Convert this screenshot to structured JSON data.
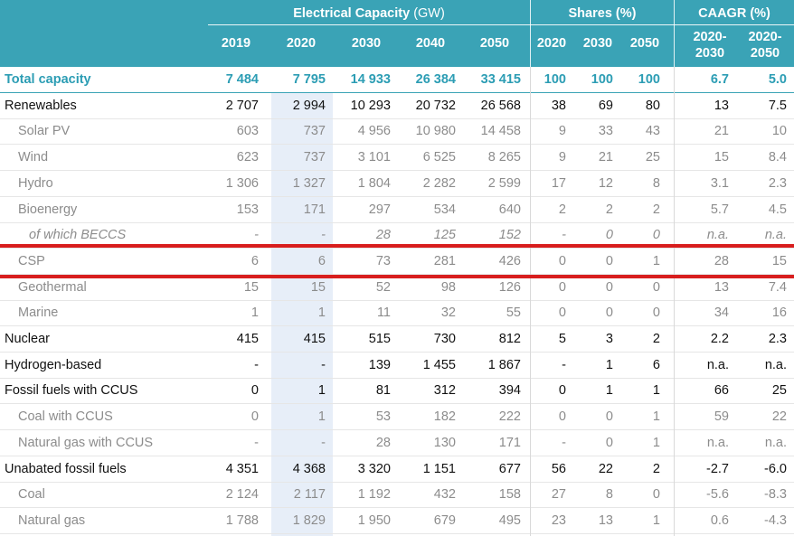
{
  "header": {
    "capacity_group": "Electrical Capacity",
    "capacity_unit": "(GW)",
    "shares_group": "Shares (%)",
    "caagr_group": "CAAGR (%)",
    "cap_years": [
      "2019",
      "2020",
      "2030",
      "2040",
      "2050"
    ],
    "share_years": [
      "2020",
      "2030",
      "2050"
    ],
    "caagr_periods": [
      [
        "2020-",
        "2030"
      ],
      [
        "2020-",
        "2050"
      ]
    ]
  },
  "rows": [
    {
      "label": "Total capacity",
      "style": "total",
      "cap": [
        "7 484",
        "7 795",
        "14 933",
        "26 384",
        "33 415"
      ],
      "shares": [
        "100",
        "100",
        "100"
      ],
      "caagr": [
        "6.7",
        "5.0"
      ]
    },
    {
      "label": "Renewables",
      "style": "main",
      "cap": [
        "2 707",
        "2 994",
        "10 293",
        "20 732",
        "26 568"
      ],
      "shares": [
        "38",
        "69",
        "80"
      ],
      "caagr": [
        "13",
        "7.5"
      ]
    },
    {
      "label": "Solar PV",
      "style": "sub",
      "cap": [
        "603",
        "737",
        "4 956",
        "10 980",
        "14 458"
      ],
      "shares": [
        "9",
        "33",
        "43"
      ],
      "caagr": [
        "21",
        "10"
      ]
    },
    {
      "label": "Wind",
      "style": "sub",
      "cap": [
        "623",
        "737",
        "3 101",
        "6 525",
        "8 265"
      ],
      "shares": [
        "9",
        "21",
        "25"
      ],
      "caagr": [
        "15",
        "8.4"
      ]
    },
    {
      "label": "Hydro",
      "style": "sub",
      "cap": [
        "1 306",
        "1 327",
        "1 804",
        "2 282",
        "2 599"
      ],
      "shares": [
        "17",
        "12",
        "8"
      ],
      "caagr": [
        "3.1",
        "2.3"
      ]
    },
    {
      "label": "Bioenergy",
      "style": "sub",
      "cap": [
        "153",
        "171",
        "297",
        "534",
        "640"
      ],
      "shares": [
        "2",
        "2",
        "2"
      ],
      "caagr": [
        "5.7",
        "4.5"
      ]
    },
    {
      "label": "of which BECCS",
      "style": "sub2",
      "cap": [
        "-",
        "-",
        "28",
        "125",
        "152"
      ],
      "shares": [
        "-",
        "0",
        "0"
      ],
      "caagr": [
        "n.a.",
        "n.a."
      ]
    },
    {
      "label": "CSP",
      "style": "sub",
      "cap": [
        "6",
        "6",
        "73",
        "281",
        "426"
      ],
      "shares": [
        "0",
        "0",
        "1"
      ],
      "caagr": [
        "28",
        "15"
      ]
    },
    {
      "label": "Geothermal",
      "style": "sub",
      "cap": [
        "15",
        "15",
        "52",
        "98",
        "126"
      ],
      "shares": [
        "0",
        "0",
        "0"
      ],
      "caagr": [
        "13",
        "7.4"
      ]
    },
    {
      "label": "Marine",
      "style": "sub",
      "cap": [
        "1",
        "1",
        "11",
        "32",
        "55"
      ],
      "shares": [
        "0",
        "0",
        "0"
      ],
      "caagr": [
        "34",
        "16"
      ]
    },
    {
      "label": "Nuclear",
      "style": "main",
      "cap": [
        "415",
        "415",
        "515",
        "730",
        "812"
      ],
      "shares": [
        "5",
        "3",
        "2"
      ],
      "caagr": [
        "2.2",
        "2.3"
      ]
    },
    {
      "label": "Hydrogen-based",
      "style": "main",
      "cap": [
        "-",
        "-",
        "139",
        "1 455",
        "1 867"
      ],
      "shares": [
        "-",
        "1",
        "6"
      ],
      "caagr": [
        "n.a.",
        "n.a."
      ]
    },
    {
      "label": "Fossil fuels with CCUS",
      "style": "main",
      "cap": [
        "0",
        "1",
        "81",
        "312",
        "394"
      ],
      "shares": [
        "0",
        "1",
        "1"
      ],
      "caagr": [
        "66",
        "25"
      ]
    },
    {
      "label": "Coal with CCUS",
      "style": "sub",
      "cap": [
        "0",
        "1",
        "53",
        "182",
        "222"
      ],
      "shares": [
        "0",
        "0",
        "1"
      ],
      "caagr": [
        "59",
        "22"
      ]
    },
    {
      "label": "Natural gas with CCUS",
      "style": "sub",
      "cap": [
        "-",
        "-",
        "28",
        "130",
        "171"
      ],
      "shares": [
        "-",
        "0",
        "1"
      ],
      "caagr": [
        "n.a.",
        "n.a."
      ]
    },
    {
      "label": "Unabated fossil fuels",
      "style": "main",
      "cap": [
        "4 351",
        "4 368",
        "3 320",
        "1 151",
        "677"
      ],
      "shares": [
        "56",
        "22",
        "2"
      ],
      "caagr": [
        "-2.7",
        "-6.0"
      ]
    },
    {
      "label": "Coal",
      "style": "sub",
      "cap": [
        "2 124",
        "2 117",
        "1 192",
        "432",
        "158"
      ],
      "shares": [
        "27",
        "8",
        "0"
      ],
      "caagr": [
        "-5.6",
        "-8.3"
      ]
    },
    {
      "label": "Natural gas",
      "style": "sub",
      "cap": [
        "1 788",
        "1 829",
        "1 950",
        "679",
        "495"
      ],
      "shares": [
        "23",
        "13",
        "1"
      ],
      "caagr": [
        "0.6",
        "-4.3"
      ]
    }
  ],
  "colors": {
    "header_bg": "#3aa3b6",
    "highlight": "#d81e1e",
    "total_text": "#2c9db4",
    "shade_2020": "#e7eef8"
  }
}
